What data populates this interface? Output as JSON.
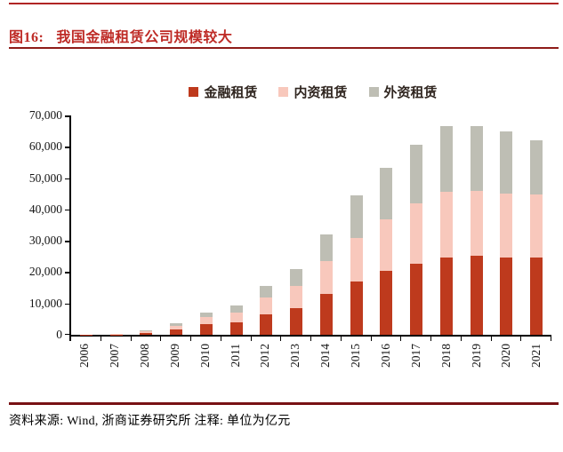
{
  "header": {
    "figure_label": "图16:",
    "figure_title": "我国金融租赁公司规模较大"
  },
  "footer": {
    "source_note": "资料来源: Wind, 浙商证券研究所 注释: 单位为亿元"
  },
  "colors": {
    "title_red": "#BE2B26",
    "top_rule": "#B02524",
    "title_rule": "#8E1B18",
    "footer_rule": "#781114",
    "axis_black": "#000000"
  },
  "chart_data": {
    "type": "bar",
    "stacked": true,
    "title": "我国金融租赁公司规模较大",
    "unit": "亿元",
    "xlabel": "",
    "ylabel": "",
    "grid": false,
    "legend_position": "top",
    "ylim": [
      0,
      70000
    ],
    "yticks": [
      0,
      10000,
      20000,
      30000,
      40000,
      50000,
      60000,
      70000
    ],
    "categories": [
      "2006",
      "2007",
      "2008",
      "2009",
      "2010",
      "2011",
      "2012",
      "2013",
      "2014",
      "2015",
      "2016",
      "2017",
      "2018",
      "2019",
      "2020",
      "2021"
    ],
    "series": [
      {
        "name": "金融租赁",
        "color": "#BE3A1D",
        "values": [
          30,
          80,
          480,
          1820,
          3500,
          3900,
          6600,
          8600,
          13000,
          17100,
          20400,
          22800,
          24700,
          25130,
          24700,
          24600
        ]
      },
      {
        "name": "内资租赁",
        "color": "#F8C8BC",
        "values": [
          30,
          90,
          680,
          1130,
          2200,
          3300,
          5400,
          6900,
          10600,
          13900,
          16400,
          19100,
          20900,
          20810,
          20400,
          20200
        ]
      },
      {
        "name": "外资租赁",
        "color": "#BEBEB4",
        "values": [
          20,
          70,
          390,
          750,
          1300,
          2100,
          3500,
          5500,
          8400,
          13400,
          16500,
          18700,
          20900,
          20600,
          19940,
          17300
        ]
      }
    ],
    "totals": [
      80,
      240,
      1550,
      3700,
      7000,
      9300,
      15500,
      21000,
      32000,
      44400,
      53300,
      60600,
      66500,
      66540,
      65040,
      62100
    ]
  }
}
